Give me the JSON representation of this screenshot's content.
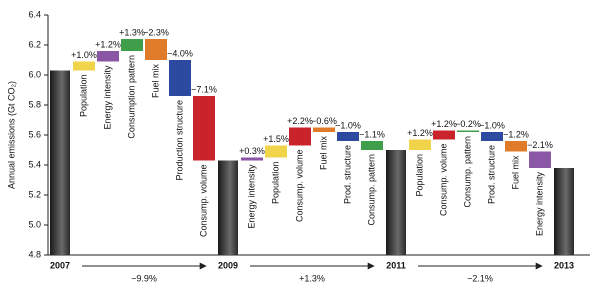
{
  "chart_data": {
    "type": "waterfall",
    "y_label": "Annual emissions (Gt CO₂)",
    "ylim": [
      4.8,
      6.4
    ],
    "yticks": [
      4.8,
      {
        "value": 5,
        "label": "5.0"
      },
      5.2,
      5.4,
      5.6,
      5.8,
      {
        "value": 6,
        "label": "6.0"
      },
      6.2,
      6.4
    ],
    "categories": [
      "2007",
      "Population",
      "Energy intensity",
      "Consumption pattern",
      "Fuel mix",
      "Production structure",
      "Consump. volume",
      "2009",
      "Energy intensity",
      "Population",
      "Consump. volume",
      "Fuel mix",
      "Prod. structure",
      "Consump. pattern",
      "2011",
      "Population",
      "Consump. volume",
      "Consump. pattern",
      "Prod. structure",
      "Fuel mix",
      "Energy intensity",
      "2013"
    ],
    "measure": [
      "total",
      "relative",
      "relative",
      "relative",
      "relative",
      "relative",
      "relative",
      "total",
      "relative",
      "relative",
      "relative",
      "relative",
      "relative",
      "relative",
      "total",
      "relative",
      "relative",
      "relative",
      "relative",
      "relative",
      "relative",
      "total"
    ],
    "values": [
      6.03,
      0.06,
      0.07,
      0.08,
      -0.14,
      -0.24,
      -0.43,
      5.43,
      0.02,
      0.08,
      0.12,
      -0.03,
      -0.06,
      -0.06,
      5.5,
      0.07,
      0.06,
      -0.01,
      -0.06,
      -0.07,
      -0.11,
      5.38
    ],
    "value_labels": [
      null,
      "+1.0%",
      "+1.2%",
      "+1.3%",
      "−2.3%",
      "−4.0%",
      "−7.1%",
      null,
      "+0.3%",
      "+1.5%",
      "+2.2%",
      "−0.6%",
      "−1.0%",
      "−1.1%",
      null,
      "+1.2%",
      "+1.2%",
      "−0.2%",
      "−1.0%",
      "−1.2%",
      "−2.1%",
      null
    ],
    "colors": [
      "#3a3a3a",
      "#f2d44a",
      "#8a56a6",
      "#3f9e4a",
      "#e07b2a",
      "#2b4aa0",
      "#c9242b",
      "#3a3a3a",
      "#8a56a6",
      "#f2d44a",
      "#c9242b",
      "#e07b2a",
      "#2b4aa0",
      "#3f9e4a",
      "#3a3a3a",
      "#f2d44a",
      "#c9242b",
      "#3f9e4a",
      "#2b4aa0",
      "#e07b2a",
      "#8a56a6",
      "#3a3a3a"
    ],
    "period_changes": [
      "−9.9%",
      "+1.3%",
      "−2.1%"
    ]
  }
}
